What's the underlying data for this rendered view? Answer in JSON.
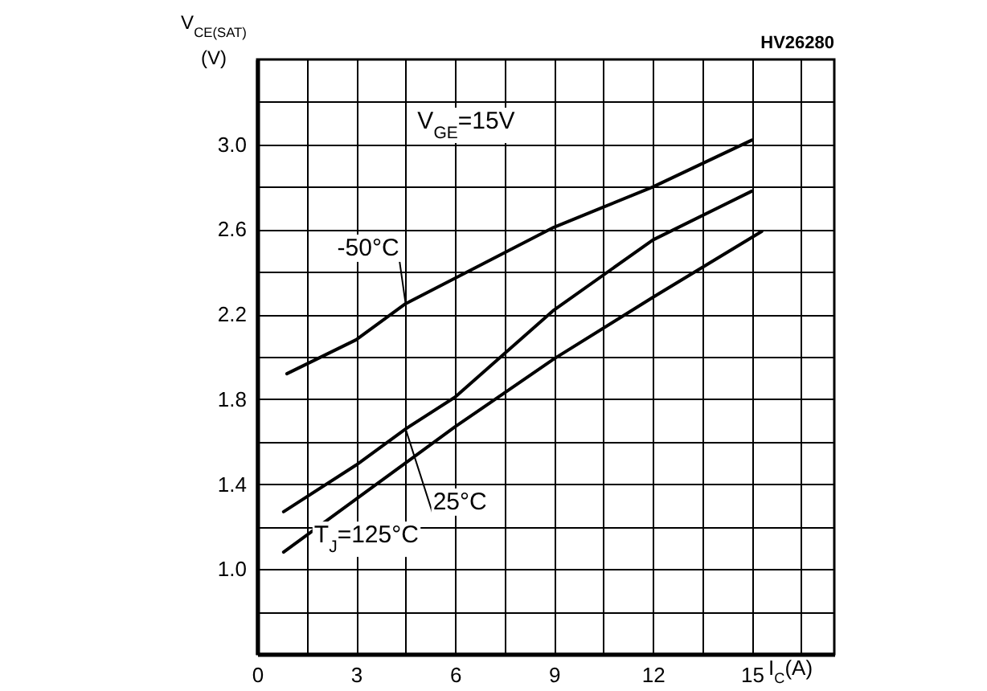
{
  "chart_data": {
    "type": "line",
    "xlabel": "I$_{C}$(A)",
    "ylabel": "V$_{CE(SAT)}$\n(V)",
    "annotations": [
      "HV26280",
      "V$_{GE}$=15V"
    ],
    "xlim": [
      0,
      17.5
    ],
    "ylim": [
      0.6,
      3.4
    ],
    "xticks": [
      0,
      {
        "value": 1.5,
        "label": null
      },
      3,
      {
        "value": 4.5,
        "label": null
      },
      6,
      {
        "value": 7.5,
        "label": null
      },
      9,
      {
        "value": 10.5,
        "label": null
      },
      12,
      {
        "value": 13.5,
        "label": null
      },
      15,
      {
        "value": 16.5,
        "label": null
      }
    ],
    "yticks": [
      {
        "value": 0.6,
        "label": null
      },
      {
        "value": 0.8,
        "label": null
      },
      {
        "value": 1.0,
        "label": "1.0"
      },
      {
        "value": 1.2,
        "label": null
      },
      {
        "value": 1.4,
        "label": "1.4"
      },
      {
        "value": 1.6,
        "label": null
      },
      {
        "value": 1.8,
        "label": "1.8"
      },
      {
        "value": 2.0,
        "label": null
      },
      {
        "value": 2.2,
        "label": "2.2"
      },
      {
        "value": 2.4,
        "label": null
      },
      {
        "value": 2.6,
        "label": "2.6"
      },
      {
        "value": 2.8,
        "label": null
      },
      {
        "value": 3.0,
        "label": "3.0"
      },
      {
        "value": 3.2,
        "label": null
      }
    ],
    "grid": true,
    "line_style": "solid",
    "series": [
      {
        "name": "-50°C",
        "color": "#000000",
        "x": [
          0.9,
          3,
          4.5,
          6,
          9,
          12,
          15
        ],
        "values": [
          1.92,
          2.08,
          2.25,
          2.37,
          2.61,
          2.8,
          3.02
        ]
      },
      {
        "name": "25°C",
        "color": "#000000",
        "x": [
          0.8,
          3,
          4.5,
          6,
          9,
          12,
          15
        ],
        "values": [
          1.27,
          1.49,
          1.66,
          1.81,
          2.22,
          2.55,
          2.78
        ]
      },
      {
        "name": "T$_{J}$=125°C",
        "color": "#000000",
        "x": [
          0.8,
          3,
          6,
          9,
          12,
          15.3
        ],
        "values": [
          1.08,
          1.33,
          1.67,
          1.99,
          2.28,
          2.59
        ]
      }
    ]
  }
}
